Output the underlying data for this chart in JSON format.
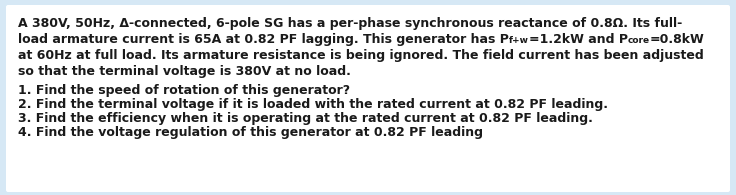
{
  "background_color": "#d6e8f5",
  "box_color": "#ffffff",
  "line1": "A 380V, 50Hz, Δ-connected, 6-pole SG has a per-phase synchronous reactance of 0.8Ω. Its full-",
  "line2_a": "load armature current is 65A at 0.82 PF lagging. This generator has P",
  "line2_sub1": "f+w",
  "line2_b": "=1.2kW and P",
  "line2_sub2": "core",
  "line2_c": "=0.8kW",
  "line3": "at 60Hz at full load. Its armature resistance is being ignored. The field current has been adjusted",
  "line4": "so that the terminal voltage is 380V at no load.",
  "q1": "1. Find the speed of rotation of this generator?",
  "q2": "2. Find the terminal voltage if it is loaded with the rated current at 0.82 PF leading.",
  "q3": "3. Find the efficiency when it is operating at the rated current at 0.82 PF leading.",
  "q4": "4. Find the voltage regulation of this generator at 0.82 PF leading",
  "font_size": 9.0,
  "sub_font_size": 6.5,
  "text_color": "#1a1a1a",
  "bold": true
}
